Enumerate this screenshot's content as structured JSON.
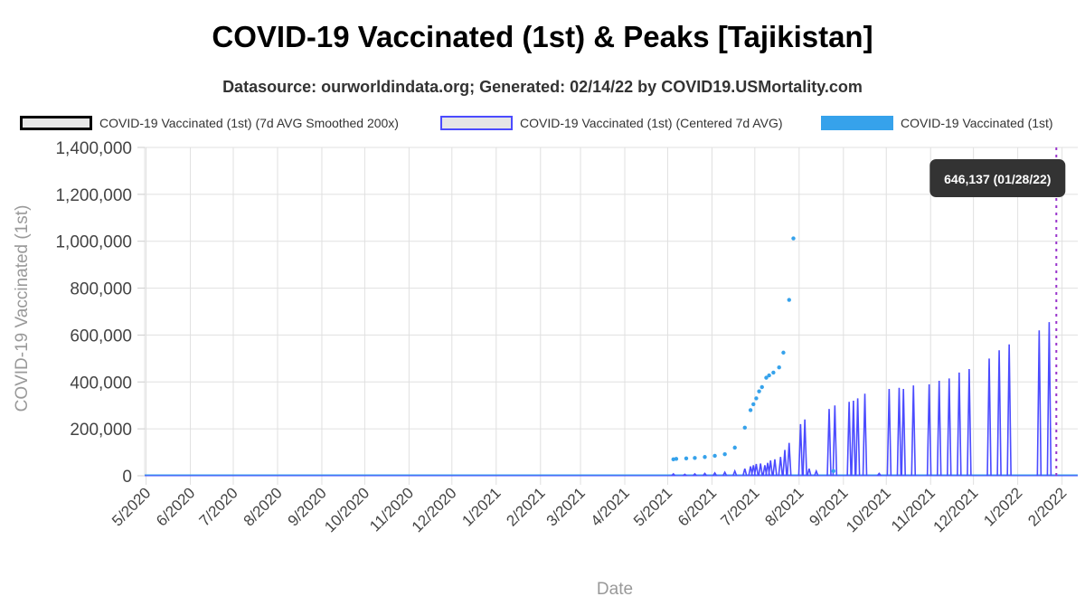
{
  "chart_data": {
    "type": "line",
    "title": "COVID-19 Vaccinated (1st) & Peaks [Tajikistan]",
    "subtitle": "Datasource: ourworldindata.org; Generated: 02/14/22 by COVID19.USMortality.com",
    "xlabel": "Date",
    "ylabel": "COVID-19 Vaccinated (1st)",
    "ylim": [
      0,
      1400000
    ],
    "yticks": [
      0,
      200000,
      400000,
      600000,
      800000,
      1000000,
      1200000,
      1400000
    ],
    "ytick_labels": [
      "0",
      "200,000",
      "400,000",
      "600,000",
      "800,000",
      "1,000,000",
      "1,200,000",
      "1,400,000"
    ],
    "xlim": [
      "2020-04-30",
      "2022-02-12"
    ],
    "xticks": [
      "2020-05-01",
      "2020-06-01",
      "2020-07-01",
      "2020-08-01",
      "2020-09-01",
      "2020-10-01",
      "2020-11-01",
      "2020-12-01",
      "2021-01-01",
      "2021-02-01",
      "2021-03-01",
      "2021-04-01",
      "2021-05-01",
      "2021-06-01",
      "2021-07-01",
      "2021-08-01",
      "2021-09-01",
      "2021-10-01",
      "2021-11-01",
      "2021-12-01",
      "2022-01-01",
      "2022-02-01"
    ],
    "xtick_labels": [
      "5/2020",
      "6/2020",
      "7/2020",
      "8/2020",
      "9/2020",
      "10/2020",
      "11/2020",
      "12/2020",
      "1/2021",
      "2/2021",
      "3/2021",
      "4/2021",
      "5/2021",
      "6/2021",
      "7/2021",
      "8/2021",
      "9/2021",
      "10/2021",
      "11/2021",
      "12/2021",
      "1/2022",
      "2/2022"
    ],
    "grid": true,
    "legend_position": "top",
    "series": [
      {
        "name": "COVID-19 Vaccinated (1st) (7d AVG Smoothed 200x)",
        "style": "points",
        "color": "#36a2eb",
        "points": [
          [
            "2021-05-05",
            70000
          ],
          [
            "2021-05-07",
            72000
          ],
          [
            "2021-05-14",
            74000
          ],
          [
            "2021-05-20",
            76000
          ],
          [
            "2021-05-27",
            80000
          ],
          [
            "2021-06-03",
            85000
          ],
          [
            "2021-06-10",
            92000
          ],
          [
            "2021-06-17",
            120000
          ],
          [
            "2021-06-24",
            205000
          ],
          [
            "2021-06-28",
            280000
          ],
          [
            "2021-06-30",
            305000
          ],
          [
            "2021-07-02",
            330000
          ],
          [
            "2021-07-04",
            360000
          ],
          [
            "2021-07-06",
            378000
          ],
          [
            "2021-07-09",
            418000
          ],
          [
            "2021-07-11",
            428000
          ],
          [
            "2021-07-14",
            440000
          ],
          [
            "2021-07-18",
            462000
          ],
          [
            "2021-07-21",
            525000
          ],
          [
            "2021-07-25",
            750000
          ],
          [
            "2021-07-28",
            1012000
          ],
          [
            "2021-08-25",
            20000
          ]
        ]
      },
      {
        "name": "COVID-19 Vaccinated (1st) (Centered 7d AVG)",
        "style": "spikes",
        "color": "#4b4bff",
        "baseline_start": "2020-04-30",
        "baseline_end": "2022-02-12",
        "spikes": [
          [
            "2021-05-05",
            8000
          ],
          [
            "2021-05-13",
            6000
          ],
          [
            "2021-05-20",
            8000
          ],
          [
            "2021-05-27",
            10000
          ],
          [
            "2021-06-03",
            12000
          ],
          [
            "2021-06-10",
            15000
          ],
          [
            "2021-06-17",
            20000
          ],
          [
            "2021-06-24",
            30000
          ],
          [
            "2021-06-28",
            40000
          ],
          [
            "2021-06-30",
            45000
          ],
          [
            "2021-07-02",
            50000
          ],
          [
            "2021-07-05",
            52000
          ],
          [
            "2021-07-08",
            45000
          ],
          [
            "2021-07-10",
            55000
          ],
          [
            "2021-07-12",
            65000
          ],
          [
            "2021-07-15",
            70000
          ],
          [
            "2021-07-19",
            80000
          ],
          [
            "2021-07-22",
            110000
          ],
          [
            "2021-07-25",
            140000
          ],
          [
            "2021-08-02",
            220000
          ],
          [
            "2021-08-05",
            240000
          ],
          [
            "2021-08-08",
            30000
          ],
          [
            "2021-08-13",
            20000
          ],
          [
            "2021-08-22",
            285000
          ],
          [
            "2021-08-26",
            300000
          ],
          [
            "2021-09-05",
            315000
          ],
          [
            "2021-09-08",
            320000
          ],
          [
            "2021-09-11",
            330000
          ],
          [
            "2021-09-16",
            350000
          ],
          [
            "2021-09-26",
            10000
          ],
          [
            "2021-10-03",
            370000
          ],
          [
            "2021-10-10",
            375000
          ],
          [
            "2021-10-13",
            370000
          ],
          [
            "2021-10-20",
            385000
          ],
          [
            "2021-10-31",
            390000
          ],
          [
            "2021-11-07",
            405000
          ],
          [
            "2021-11-14",
            415000
          ],
          [
            "2021-11-21",
            440000
          ],
          [
            "2021-11-28",
            455000
          ],
          [
            "2021-12-12",
            500000
          ],
          [
            "2021-12-19",
            535000
          ],
          [
            "2021-12-26",
            560000
          ],
          [
            "2022-01-16",
            620000
          ],
          [
            "2022-01-23",
            655000
          ]
        ]
      },
      {
        "name": "COVID-19 Vaccinated (1st)",
        "style": "area",
        "color": "#36a2eb",
        "baseline_start": "2020-04-30",
        "baseline_end": "2022-02-12"
      }
    ],
    "annotations": [
      {
        "type": "vline",
        "x": "2022-01-28",
        "color": "#9933cc",
        "label": "646,137 (01/28/22)",
        "value": 646137
      }
    ]
  },
  "legend_colors": {
    "smoothed": {
      "fill": "#e6e6e6",
      "border": "#000000"
    },
    "centered": {
      "fill": "#e6e6e6",
      "border": "#4b4bff"
    },
    "raw": {
      "fill": "#36a2eb",
      "border": "#36a2eb"
    }
  }
}
